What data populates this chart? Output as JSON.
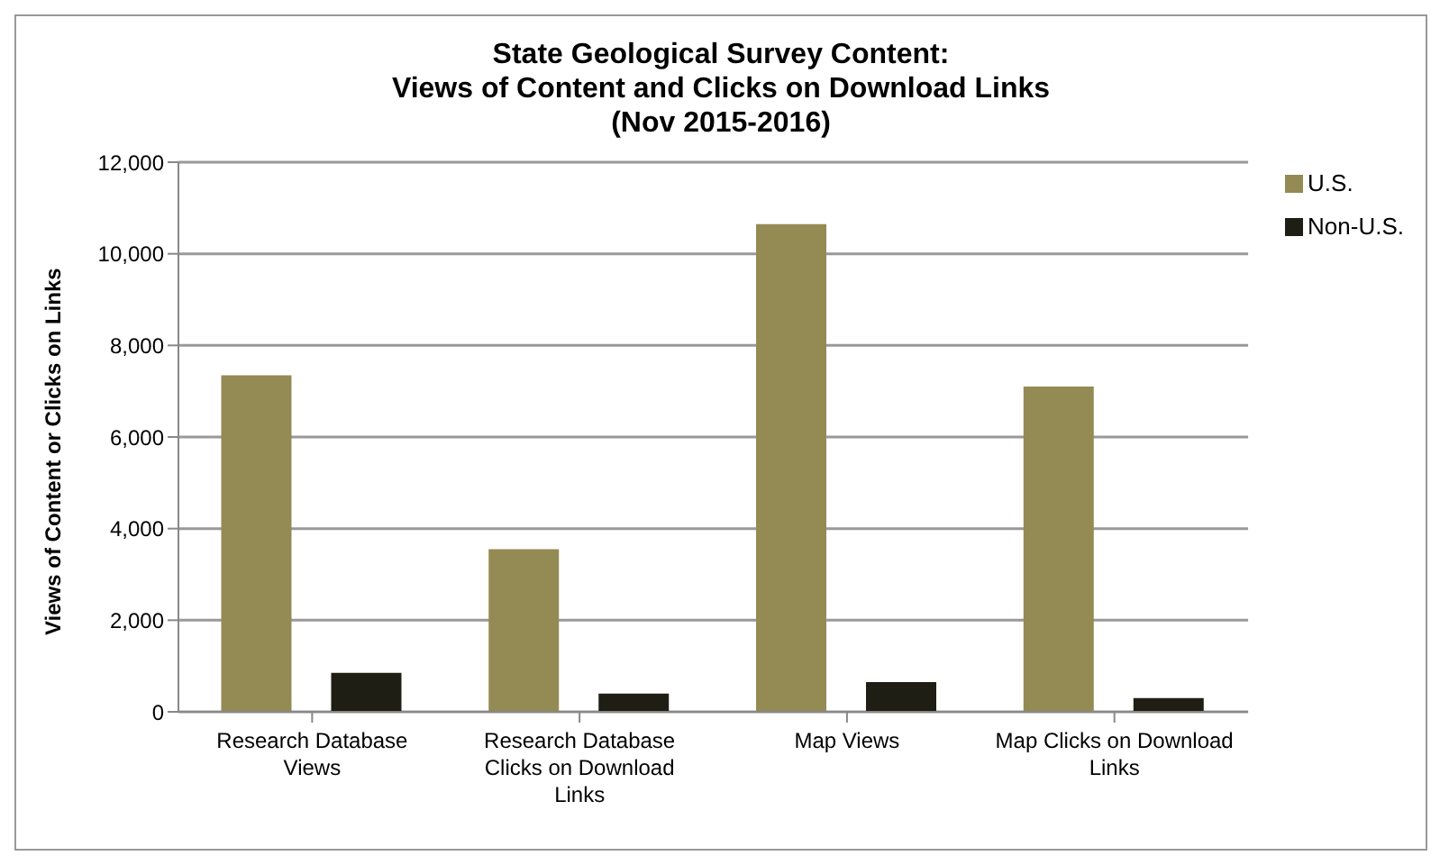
{
  "chart_data": {
    "type": "bar",
    "title": "State Geological Survey Content:\nViews of Content and Clicks on Download Links\n(Nov 2015-2016)",
    "ylabel": "Views of Content or Clicks on Links",
    "categories": [
      "Research Database Views",
      "Research Database Clicks on Download Links",
      "Map Views",
      "Map Clicks on Download Links"
    ],
    "series": [
      {
        "name": "U.S.",
        "color": "#948a54",
        "values": [
          7350,
          3550,
          10650,
          7100
        ]
      },
      {
        "name": "Non-U.S.",
        "color": "#1f1e14",
        "values": [
          850,
          400,
          650,
          300
        ]
      }
    ],
    "ylim": [
      0,
      12000
    ],
    "yticks": [
      0,
      {
        "value": 2000,
        "label": "2,000"
      },
      {
        "value": 4000,
        "label": "4,000"
      },
      {
        "value": 6000,
        "label": "6,000"
      },
      {
        "value": 8000,
        "label": "8,000"
      },
      {
        "value": 10000,
        "label": "10,000"
      },
      {
        "value": 12000,
        "label": "12,000"
      }
    ],
    "grid": "y",
    "legend": "right"
  }
}
